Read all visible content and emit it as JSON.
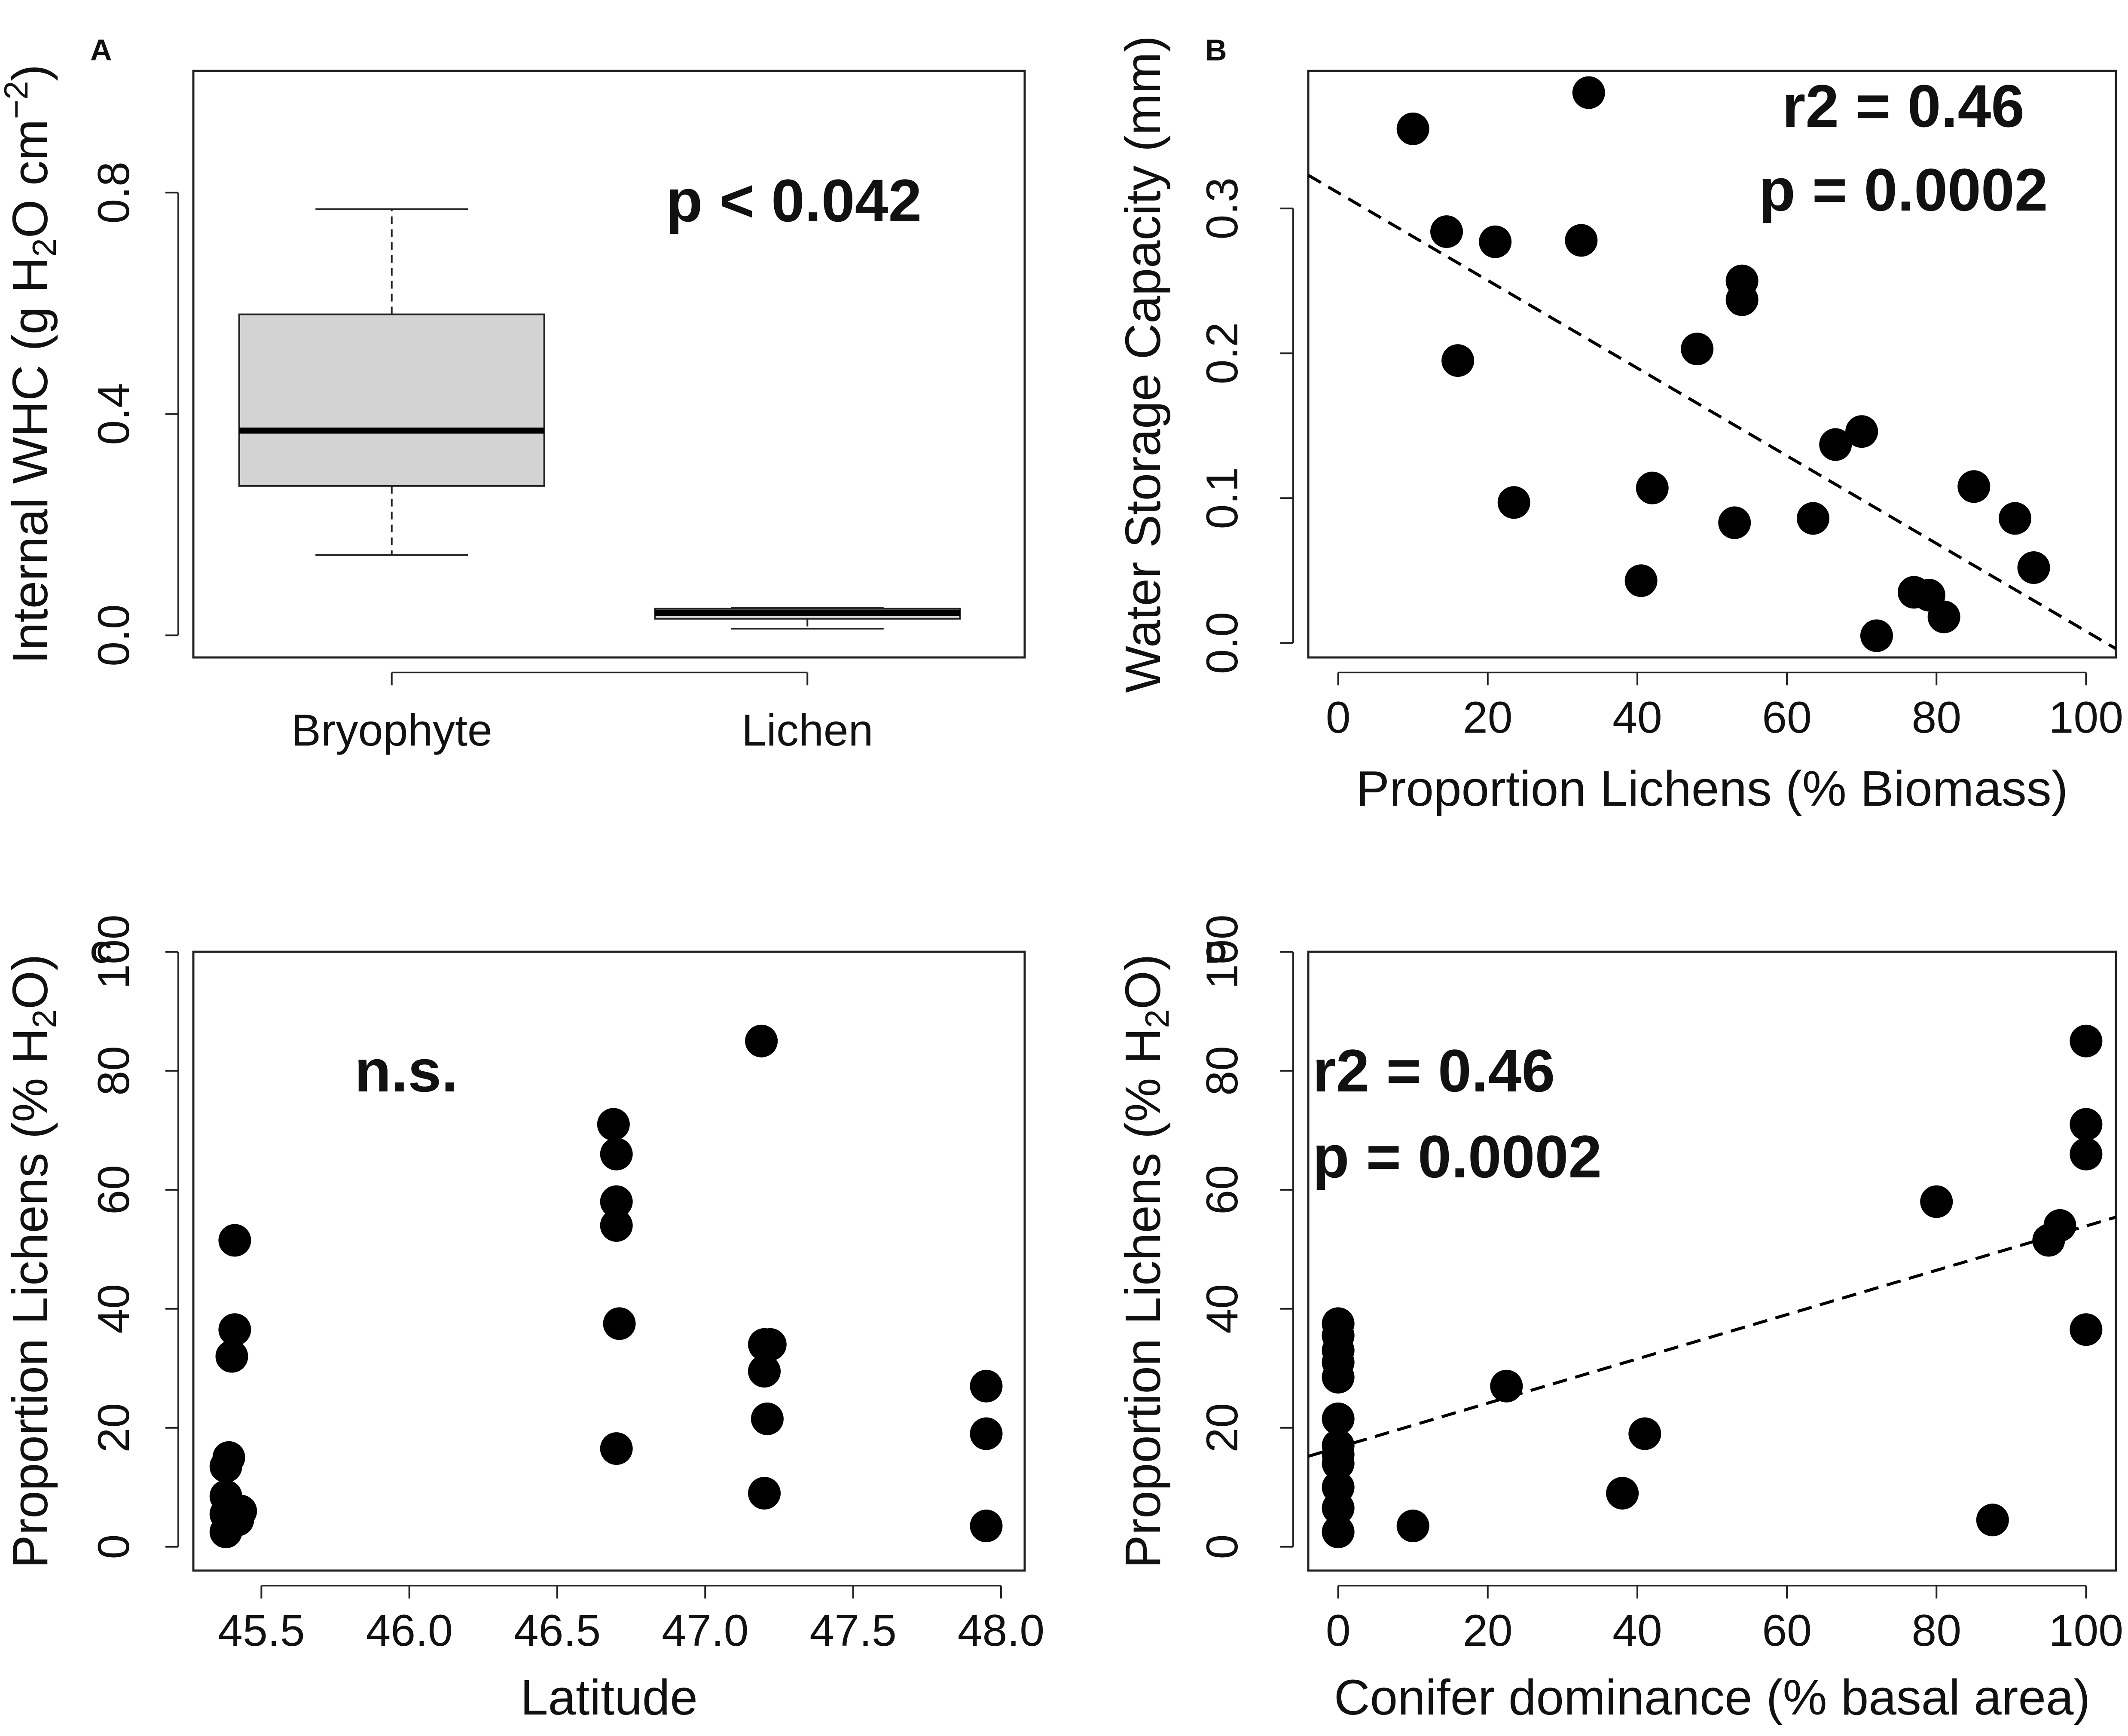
{
  "chart_data": [
    {
      "id": "A",
      "panel_label": "A",
      "type": "box",
      "categories": [
        "Bryophyte",
        "Lichen"
      ],
      "boxes": [
        {
          "name": "Bryophyte",
          "whisker_low": 0.145,
          "q1": 0.27,
          "median": 0.37,
          "q3": 0.58,
          "whisker_high": 0.77
        },
        {
          "name": "Lichen",
          "whisker_low": 0.012,
          "q1": 0.03,
          "median": 0.04,
          "q3": 0.048,
          "whisker_high": 0.05
        }
      ],
      "ylabel": "Internal WHC (g H",
      "ylabel_sub": "2",
      "ylabel_mid": "O cm",
      "ylabel_sup": "−2",
      "ylabel_end": ")",
      "ylim": [
        -0.04,
        1.02
      ],
      "yticks": [
        0.0,
        0.4,
        0.8
      ],
      "ytick_labels": [
        "0.0",
        "0.4",
        "0.8"
      ],
      "annotation": "p < 0.042"
    },
    {
      "id": "B",
      "panel_label": "B",
      "type": "scatter",
      "xlabel": "Proportion Lichens (% Biomass)",
      "ylabel": "Water Storage Capacity (mm)",
      "xlim": [
        -4,
        104
      ],
      "ylim": [
        -0.01,
        0.395
      ],
      "xticks": [
        0,
        20,
        40,
        60,
        80,
        100
      ],
      "xtick_labels": [
        "0",
        "20",
        "40",
        "60",
        "80",
        "100"
      ],
      "yticks": [
        0.0,
        0.1,
        0.2,
        0.3
      ],
      "ytick_labels": [
        "0.0",
        "0.1",
        "0.2",
        "0.3"
      ],
      "x": [
        10,
        14.5,
        16,
        21,
        23.5,
        32.5,
        33.5,
        40.5,
        42,
        48,
        53,
        54,
        54,
        63.5,
        66.5,
        70,
        72,
        77,
        79,
        81,
        85,
        90.5,
        93
      ],
      "y": [
        0.355,
        0.284,
        0.195,
        0.277,
        0.097,
        0.278,
        0.38,
        0.043,
        0.107,
        0.203,
        0.083,
        0.237,
        0.25,
        0.086,
        0.137,
        0.146,
        0.005,
        0.035,
        0.033,
        0.018,
        0.108,
        0.086,
        0.052
      ],
      "trendline": {
        "x": [
          -4,
          104
        ],
        "y": [
          0.323,
          -0.004
        ]
      },
      "annotation_line1": "r2 = 0.46",
      "annotation_line2": "p = 0.0002"
    },
    {
      "id": "C",
      "panel_label": "C",
      "type": "scatter",
      "xlabel": "Latitude",
      "ylabel": "Proportion Lichens (% H",
      "ylabel_sub": "2",
      "ylabel_end": "O)",
      "xlim": [
        45.27,
        48.08
      ],
      "ylim": [
        -4,
        100
      ],
      "xticks": [
        45.5,
        46.0,
        46.5,
        47.0,
        47.5,
        48.0
      ],
      "xtick_labels": [
        "45.5",
        "46.0",
        "46.5",
        "47.0",
        "47.5",
        "48.0"
      ],
      "yticks": [
        0,
        20,
        40,
        60,
        80,
        100
      ],
      "ytick_labels": [
        "0",
        "20",
        "40",
        "60",
        "80",
        "100"
      ],
      "x": [
        45.38,
        45.38,
        45.38,
        45.38,
        45.39,
        45.4,
        45.41,
        45.41,
        45.42,
        45.43,
        46.69,
        46.7,
        46.7,
        46.7,
        46.71,
        46.7,
        47.19,
        47.2,
        47.2,
        47.21,
        47.22,
        47.2,
        47.95,
        47.95,
        47.95
      ],
      "y": [
        2.5,
        5.5,
        8.5,
        13.5,
        15,
        32,
        36.5,
        51.5,
        4.5,
        6,
        71,
        66,
        58,
        54,
        37.5,
        16.5,
        85,
        34,
        29.5,
        21.5,
        34,
        9,
        27,
        19,
        3.5
      ],
      "annotation": "n.s."
    },
    {
      "id": "D",
      "panel_label": "D",
      "type": "scatter",
      "xlabel": "Conifer dominance (% basal area)",
      "ylabel": "Proportion Lichens (% H",
      "ylabel_sub": "2",
      "ylabel_end": "O)",
      "xlim": [
        -4,
        104
      ],
      "ylim": [
        -4,
        100
      ],
      "xticks": [
        0,
        20,
        40,
        60,
        80,
        100
      ],
      "xtick_labels": [
        "0",
        "20",
        "40",
        "60",
        "80",
        "100"
      ],
      "yticks": [
        0,
        20,
        40,
        60,
        80,
        100
      ],
      "ytick_labels": [
        "0",
        "20",
        "40",
        "60",
        "80",
        "100"
      ],
      "x": [
        0,
        0,
        0,
        0,
        0,
        0,
        0,
        0,
        0,
        0,
        0,
        0,
        10,
        22.5,
        38,
        41,
        80,
        87.5,
        95,
        96.5,
        100,
        100,
        100,
        100
      ],
      "y": [
        2.5,
        6.5,
        10,
        14,
        15.5,
        17,
        21.5,
        28.5,
        31,
        33,
        35.5,
        37.5,
        3.5,
        27,
        9,
        19,
        58,
        4.5,
        51.5,
        54,
        85,
        71,
        66,
        36.5
      ],
      "trendline": {
        "x": [
          -4,
          104
        ],
        "y": [
          15.2,
          55.4
        ]
      },
      "annotation_line1": "r2 = 0.46",
      "annotation_line2": "p = 0.0002"
    }
  ]
}
